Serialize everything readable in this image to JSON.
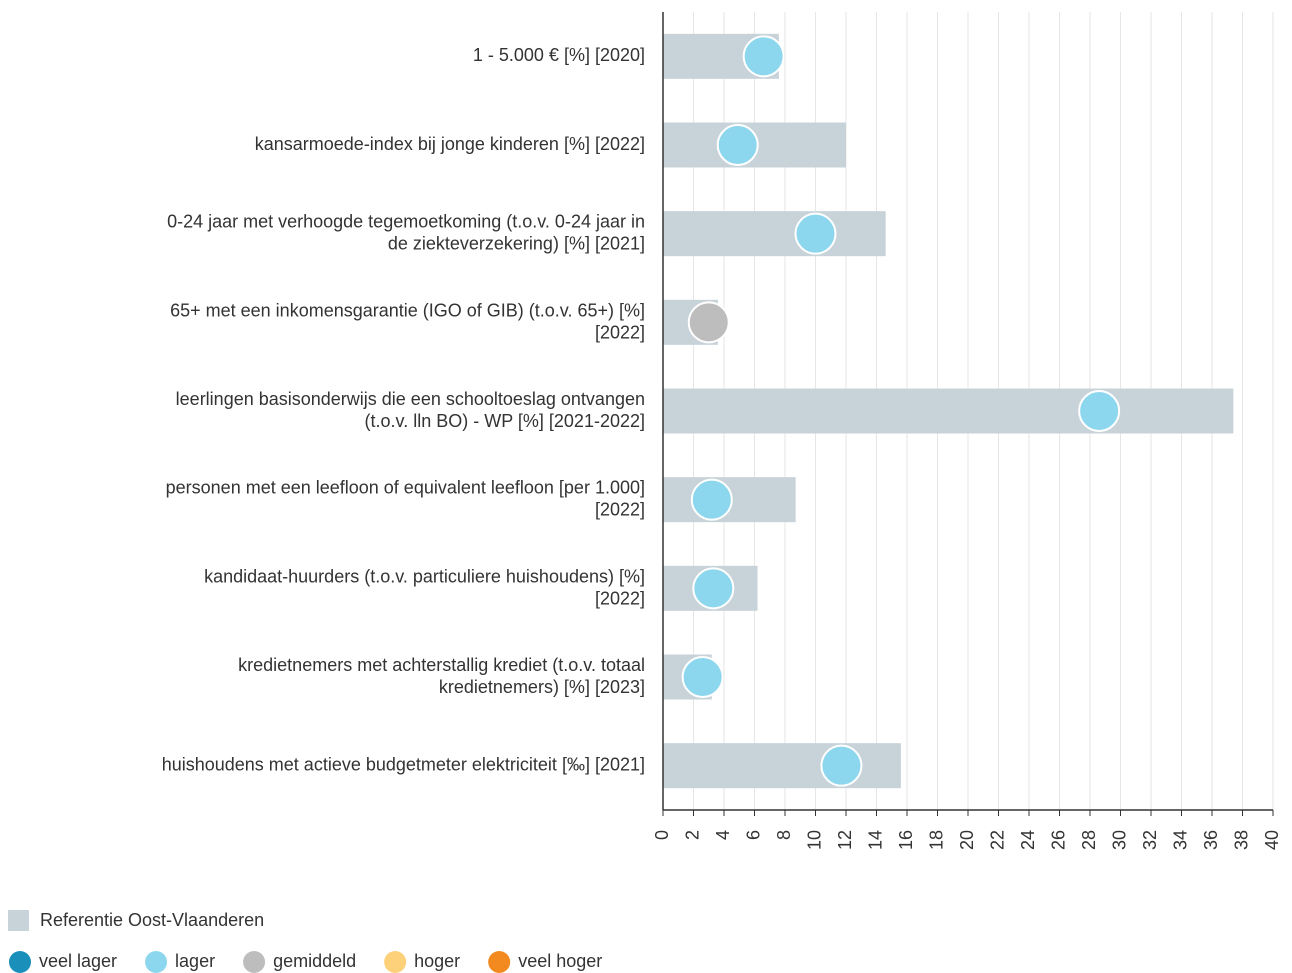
{
  "chart_data": {
    "type": "bar-dot",
    "categories": [
      "1 - 5.000 € [%] [2020]",
      "kansarmoede-index bij jonge kinderen [%] [2022]",
      "0-24 jaar met verhoogde tegemoetkoming (t.o.v. 0-24 jaar in\nde ziekteverzekering) [%] [2021]",
      "65+ met een inkomensgarantie (IGO of GIB) (t.o.v. 65+) [%]\n[2022]",
      "leerlingen basisonderwijs die een schooltoeslag ontvangen\n(t.o.v. lln BO) - WP [%] [2021-2022]",
      "personen met een leefloon of equivalent leefloon [per 1.000]\n[2022]",
      "kandidaat-huurders (t.o.v. particuliere huishoudens) [%]\n[2022]",
      "kredietnemers met achterstallig krediet (t.o.v. totaal\nkredietnemers) [%] [2023]",
      "huishoudens met actieve budgetmeter elektriciteit [‰] [2021]"
    ],
    "series": [
      {
        "name": "Referentie Oost-Vlaanderen",
        "color": "#c8d3d9",
        "values": [
          7.6,
          12.0,
          14.6,
          3.6,
          37.4,
          8.7,
          6.2,
          3.2,
          15.6
        ]
      },
      {
        "values": [
          6.6,
          4.9,
          10.0,
          3.0,
          28.6,
          3.2,
          3.3,
          2.6,
          11.7
        ],
        "colors": [
          "#8dd7ee",
          "#8dd7ee",
          "#8dd7ee",
          "#bdbdbd",
          "#8dd7ee",
          "#8dd7ee",
          "#8dd7ee",
          "#8dd7ee",
          "#8dd7ee"
        ]
      }
    ],
    "point_legend": [
      {
        "name": "veel lager",
        "color": "#1a8fba"
      },
      {
        "name": "lager",
        "color": "#8dd7ee"
      },
      {
        "name": "gemiddeld",
        "color": "#bdbdbd"
      },
      {
        "name": "hoger",
        "color": "#fdd17a"
      },
      {
        "name": "veel hoger",
        "color": "#f28a1f"
      }
    ],
    "xlim": [
      0,
      40
    ],
    "xticks": [
      0,
      2,
      4,
      6,
      8,
      10,
      12,
      14,
      16,
      18,
      20,
      22,
      24,
      26,
      28,
      30,
      32,
      34,
      36,
      38,
      40
    ],
    "grid": true
  }
}
